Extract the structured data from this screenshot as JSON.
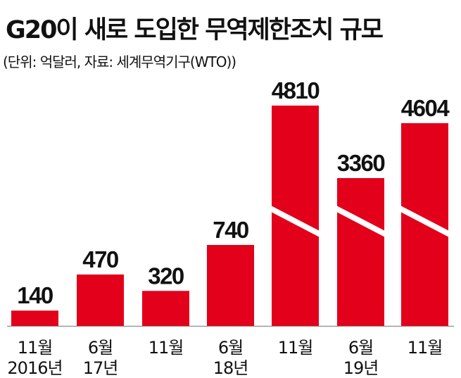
{
  "header": {
    "title": "G20이 새로 도입한 무역제한조치 규모",
    "subtitle": "(단위: 억달러, 자료: 세계무역기구(WTO))"
  },
  "colors": {
    "bar": "#e2001a",
    "axis": "#999999",
    "break_line": "#ffffff"
  },
  "chart_data": {
    "type": "bar",
    "title": "G20이 새로 도입한 무역제한조치 규모",
    "ylabel": "",
    "xlabel": "",
    "axis_break": true,
    "categories": [
      [
        "11월",
        "2016년"
      ],
      [
        "6월",
        "17년"
      ],
      [
        "11월",
        ""
      ],
      [
        "6월",
        "18년"
      ],
      [
        "11월",
        ""
      ],
      [
        "6월",
        "19년"
      ],
      [
        "11월",
        ""
      ]
    ],
    "values": [
      140,
      470,
      320,
      740,
      4810,
      3360,
      4604
    ],
    "value_labels": [
      "140",
      "470",
      "320",
      "740",
      "4810",
      "3360",
      "4604"
    ],
    "broken_bars": [
      false,
      false,
      false,
      false,
      true,
      true,
      true
    ]
  }
}
